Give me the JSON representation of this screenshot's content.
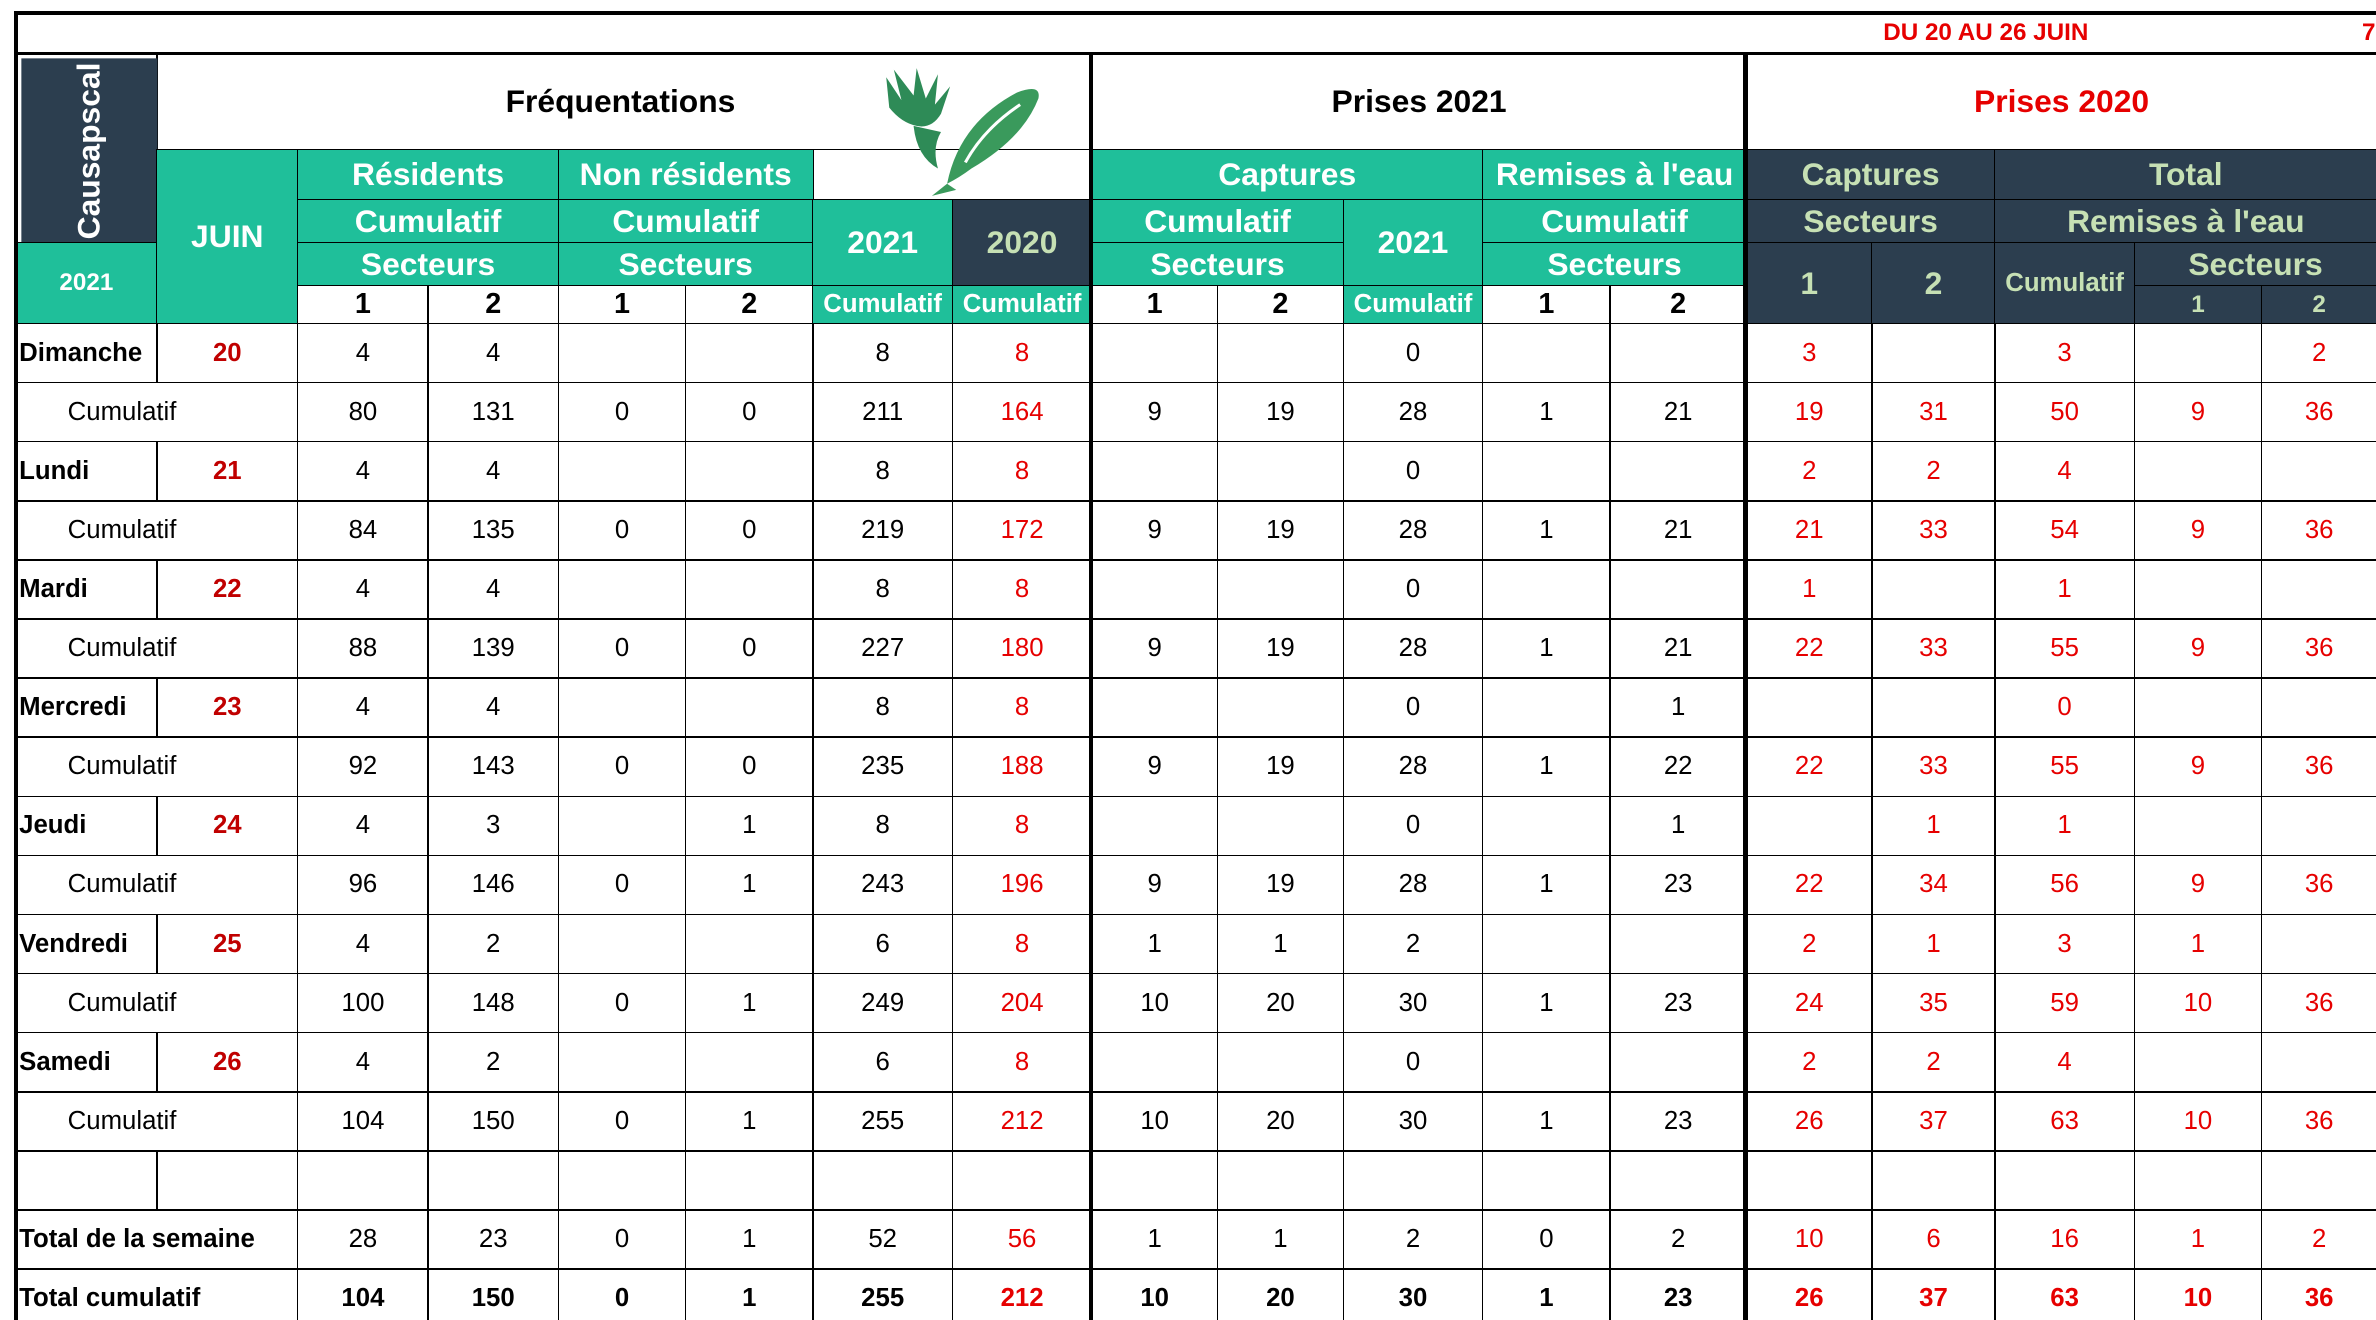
{
  "header": {
    "period": "DU 20 AU 26 JUIN",
    "page": "7"
  },
  "table": {
    "headers": {
      "station": "Causapscal",
      "year": "2021",
      "month": "JUIN",
      "frequentations": "Fréquentations",
      "residents": "Résidents",
      "non_residents": "Non résidents",
      "cumulatif": "Cumulatif",
      "secteurs": "Secteurs",
      "one": 1,
      "two": 2,
      "y2021": "2021",
      "y2020": "2020",
      "prises_2021": "Prises 2021",
      "captures": "Captures",
      "remises": "Remises à l'eau",
      "prises_2020": "Prises 2020",
      "total": "Total"
    },
    "rows": [
      {
        "label": "Dimanche",
        "day": 20,
        "cells": [
          4,
          4,
          null,
          null,
          8,
          8,
          null,
          null,
          0,
          null,
          null,
          3,
          null,
          3,
          null,
          2
        ]
      },
      {
        "label": "Cumulatif",
        "cells": [
          80,
          131,
          0,
          0,
          211,
          164,
          9,
          19,
          28,
          1,
          21,
          19,
          31,
          50,
          9,
          36
        ]
      },
      {
        "label": "Lundi",
        "day": 21,
        "cells": [
          4,
          4,
          null,
          null,
          8,
          8,
          null,
          null,
          0,
          null,
          null,
          2,
          2,
          4,
          null,
          null
        ]
      },
      {
        "label": "Cumulatif",
        "cells": [
          84,
          135,
          0,
          0,
          219,
          172,
          9,
          19,
          28,
          1,
          21,
          21,
          33,
          54,
          9,
          36
        ]
      },
      {
        "label": "Mardi",
        "day": 22,
        "cells": [
          4,
          4,
          null,
          null,
          8,
          8,
          null,
          null,
          0,
          null,
          null,
          1,
          null,
          1,
          null,
          null
        ]
      },
      {
        "label": "Cumulatif",
        "cells": [
          88,
          139,
          0,
          0,
          227,
          180,
          9,
          19,
          28,
          1,
          21,
          22,
          33,
          55,
          9,
          36
        ]
      },
      {
        "label": "Mercredi",
        "day": 23,
        "cells": [
          4,
          4,
          null,
          null,
          8,
          8,
          null,
          null,
          0,
          null,
          1,
          null,
          null,
          0,
          null,
          null
        ]
      },
      {
        "label": "Cumulatif",
        "cells": [
          92,
          143,
          0,
          0,
          235,
          188,
          9,
          19,
          28,
          1,
          22,
          22,
          33,
          55,
          9,
          36
        ]
      },
      {
        "label": "Jeudi",
        "day": 24,
        "cells": [
          4,
          3,
          null,
          1,
          8,
          8,
          null,
          null,
          0,
          null,
          1,
          null,
          1,
          1,
          null,
          null
        ]
      },
      {
        "label": "Cumulatif",
        "cells": [
          96,
          146,
          0,
          1,
          243,
          196,
          9,
          19,
          28,
          1,
          23,
          22,
          34,
          56,
          9,
          36
        ]
      },
      {
        "label": "Vendredi",
        "day": 25,
        "cells": [
          4,
          2,
          null,
          null,
          6,
          8,
          1,
          1,
          2,
          null,
          null,
          2,
          1,
          3,
          1,
          null
        ]
      },
      {
        "label": "Cumulatif",
        "cells": [
          100,
          148,
          0,
          1,
          249,
          204,
          10,
          20,
          30,
          1,
          23,
          24,
          35,
          59,
          10,
          36
        ]
      },
      {
        "label": "Samedi",
        "day": 26,
        "cells": [
          4,
          2,
          null,
          null,
          6,
          8,
          null,
          null,
          0,
          null,
          null,
          2,
          2,
          4,
          null,
          null
        ]
      },
      {
        "label": "Cumulatif",
        "cells": [
          104,
          150,
          0,
          1,
          255,
          212,
          10,
          20,
          30,
          1,
          23,
          26,
          37,
          63,
          10,
          36
        ]
      },
      {
        "label": "Total de la semaine",
        "cells": [
          28,
          23,
          0,
          1,
          52,
          56,
          1,
          1,
          2,
          0,
          2,
          10,
          6,
          16,
          1,
          2
        ]
      },
      {
        "label": "Total cumulatif",
        "cells": [
          104,
          150,
          0,
          1,
          255,
          212,
          10,
          20,
          30,
          1,
          23,
          26,
          37,
          63,
          10,
          36
        ]
      }
    ]
  }
}
